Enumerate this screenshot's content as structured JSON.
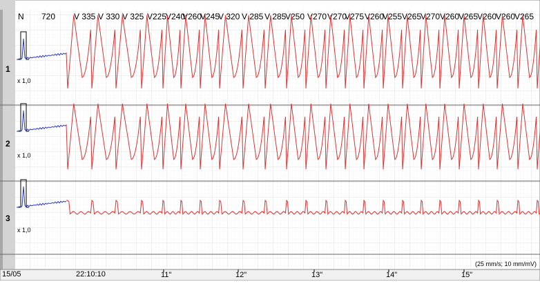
{
  "header": {
    "rhythm_label": "N",
    "first_interval": "720",
    "beats": [
      "V 335",
      "V 330",
      "V 325",
      "V225",
      "V240",
      "V260",
      "V245",
      "V 320",
      "V 285",
      "V 285",
      "V250",
      "V270",
      "V270",
      "V275",
      "V260",
      "V255",
      "V265",
      "V270",
      "V260",
      "V265",
      "V260",
      "V260",
      "V265"
    ]
  },
  "leads": [
    {
      "number": "1",
      "gain": "x 1,0"
    },
    {
      "number": "2",
      "gain": "x 1,0"
    },
    {
      "number": "3",
      "gain": "x 1,0"
    }
  ],
  "footer": {
    "date": "15/05",
    "time": "22:10:10",
    "seconds": [
      "11\"",
      "12\"",
      "13\"",
      "14\"",
      "15\""
    ],
    "speed": "(25 mm/s; 10 mm/mV)"
  }
}
